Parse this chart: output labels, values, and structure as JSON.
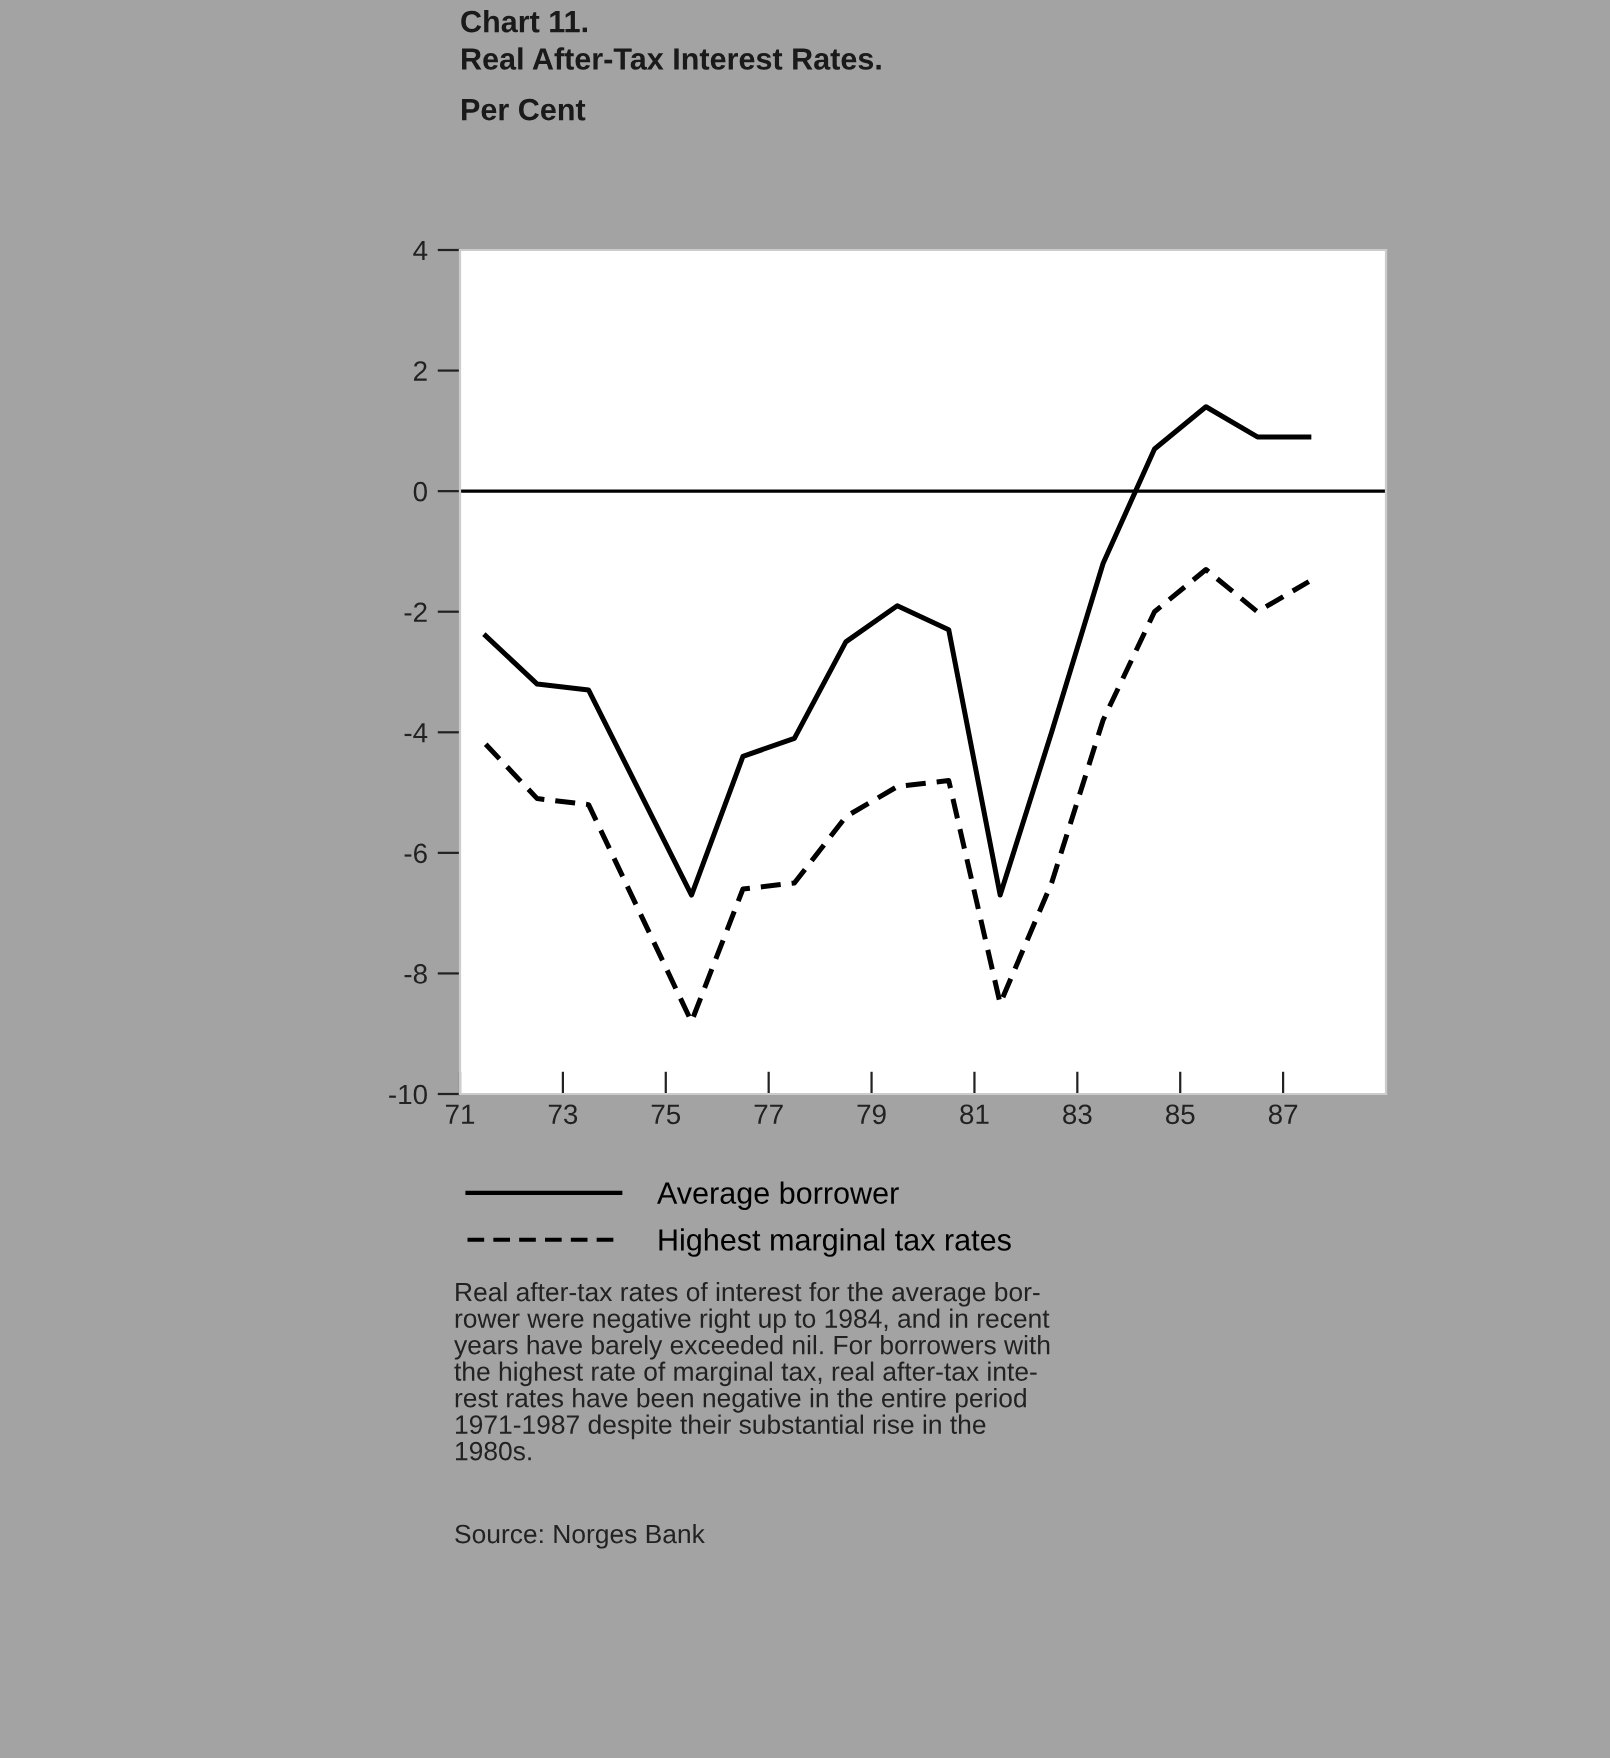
{
  "chart_data": {
    "type": "line",
    "title": "Chart 11.\nReal After-Tax Interest Rates.",
    "subtitle": "Per Cent",
    "x": [
      71.5,
      72.5,
      73.5,
      74.5,
      75.5,
      76.5,
      77.5,
      78.5,
      79.5,
      80.5,
      81.5,
      82.5,
      83.5,
      84.5,
      85.5,
      86.5,
      87.5
    ],
    "series": [
      {
        "name": "Average borrower",
        "color": "#000000",
        "line_style": "solid",
        "values": [
          -2.4,
          -3.2,
          -3.3,
          -5.0,
          -6.7,
          -4.4,
          -4.1,
          -2.5,
          -1.9,
          -2.3,
          -6.7,
          -4.0,
          -1.2,
          0.7,
          1.4,
          0.9,
          0.9
        ]
      },
      {
        "name": "Highest marginal tax rates",
        "color": "#000000",
        "line_style": "dashed",
        "values": [
          -4.2,
          -5.1,
          -5.2,
          -7.0,
          -8.8,
          -6.6,
          -6.5,
          -5.4,
          -4.9,
          -4.8,
          -8.5,
          -6.5,
          -3.8,
          -2.0,
          -1.3,
          -2.0,
          -1.5
        ]
      }
    ],
    "xlim": [
      71,
      89
    ],
    "xticks": [
      71,
      73,
      75,
      77,
      79,
      81,
      83,
      85,
      87
    ],
    "ylim": [
      -10,
      4
    ],
    "yticks": [
      -10,
      -8,
      -6,
      -4,
      -2,
      0,
      2,
      4
    ],
    "ref_lines": [
      {
        "axis": "y",
        "value": 0,
        "color": "#000000"
      }
    ],
    "grid": false,
    "legend": "bottom",
    "marker": "none",
    "annotations": [
      "Real after-tax rates of interest for the average bor-\nrower were negative right up to 1984, and in recent\nyears have barely exceeded nil. For borrowers with\nthe highest rate of marginal tax, real after-tax inte-\nrest rates have been negative in the entire period\n1971-1987 despite their substantial rise in the\n1980s.",
      "Source: Norges Bank"
    ]
  }
}
